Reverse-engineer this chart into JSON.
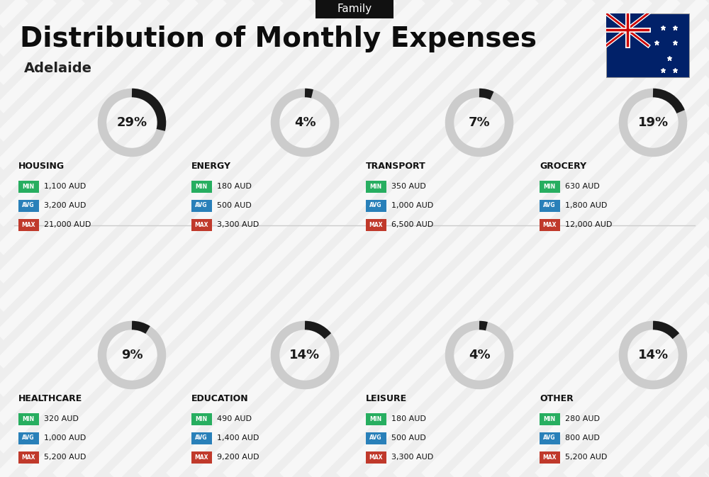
{
  "title": "Distribution of Monthly Expenses",
  "subtitle": "Adelaide",
  "tag": "Family",
  "bg_color": "#eeeeee",
  "categories": [
    {
      "name": "HOUSING",
      "percent": 29,
      "min": "1,100 AUD",
      "avg": "3,200 AUD",
      "max": "21,000 AUD",
      "row": 0,
      "col": 0
    },
    {
      "name": "ENERGY",
      "percent": 4,
      "min": "180 AUD",
      "avg": "500 AUD",
      "max": "3,300 AUD",
      "row": 0,
      "col": 1
    },
    {
      "name": "TRANSPORT",
      "percent": 7,
      "min": "350 AUD",
      "avg": "1,000 AUD",
      "max": "6,500 AUD",
      "row": 0,
      "col": 2
    },
    {
      "name": "GROCERY",
      "percent": 19,
      "min": "630 AUD",
      "avg": "1,800 AUD",
      "max": "12,000 AUD",
      "row": 0,
      "col": 3
    },
    {
      "name": "HEALTHCARE",
      "percent": 9,
      "min": "320 AUD",
      "avg": "1,000 AUD",
      "max": "5,200 AUD",
      "row": 1,
      "col": 0
    },
    {
      "name": "EDUCATION",
      "percent": 14,
      "min": "490 AUD",
      "avg": "1,400 AUD",
      "max": "9,200 AUD",
      "row": 1,
      "col": 1
    },
    {
      "name": "LEISURE",
      "percent": 4,
      "min": "180 AUD",
      "avg": "500 AUD",
      "max": "3,300 AUD",
      "row": 1,
      "col": 2
    },
    {
      "name": "OTHER",
      "percent": 14,
      "min": "280 AUD",
      "avg": "800 AUD",
      "max": "5,200 AUD",
      "row": 1,
      "col": 3
    }
  ],
  "color_min": "#27ae60",
  "color_avg": "#2980b9",
  "color_max": "#c0392b",
  "label_min": "MIN",
  "label_avg": "AVG",
  "label_max": "MAX",
  "circle_bg_color": "#cccccc",
  "circle_fg_color": "#1a1a1a",
  "tag_bg": "#111111",
  "tag_fg": "#ffffff",
  "stripe_color": "#ffffff",
  "stripe_alpha": 0.55,
  "stripe_lw": 12,
  "title_fontsize": 28,
  "subtitle_fontsize": 14,
  "tag_fontsize": 11,
  "cat_name_fontsize": 9,
  "pct_fontsize": 13,
  "badge_label_fontsize": 5.5,
  "badge_value_fontsize": 8,
  "circle_lw": 9
}
